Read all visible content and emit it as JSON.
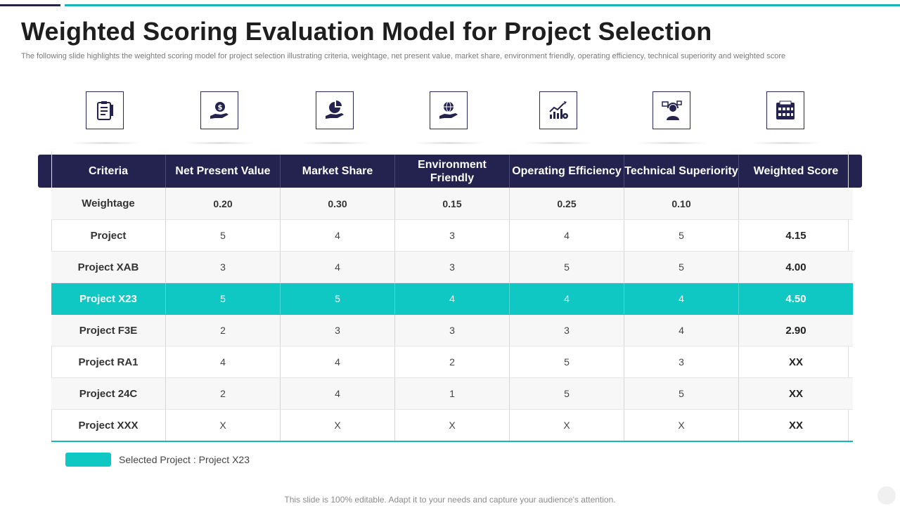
{
  "slide": {
    "title": "Weighted Scoring Evaluation Model for Project Selection",
    "subtitle": "The following slide highlights the weighted scoring model for project selection illustrating criteria, weightage, net present value, market share, environment friendly, operating efficiency, technical superiority and weighted score",
    "footer": "This slide is 100% editable. Adapt it to your needs and capture your audience's attention."
  },
  "icons": [
    "clipboard-checklist-icon",
    "money-hand-icon",
    "pie-chart-hand-icon",
    "globe-hand-icon",
    "growth-chart-gear-icon",
    "support-headset-person-icon",
    "score-calendar-icon"
  ],
  "table": {
    "headers": [
      "Criteria",
      "Net Present Value",
      "Market Share",
      "Environment Friendly",
      "Operating Efficiency",
      "Technical Superiority",
      "Weighted Score"
    ],
    "rows": [
      [
        "Weightage",
        "0.20",
        "0.30",
        "0.15",
        "0.25",
        "0.10",
        ""
      ],
      [
        "Project",
        "5",
        "4",
        "3",
        "4",
        "5",
        "4.15"
      ],
      [
        "Project XAB",
        "3",
        "4",
        "3",
        "5",
        "5",
        "4.00"
      ],
      [
        "Project X23",
        "5",
        "5",
        "4",
        "4",
        "4",
        "4.50"
      ],
      [
        "Project F3E",
        "2",
        "3",
        "3",
        "3",
        "4",
        "2.90"
      ],
      [
        "Project RA1",
        "4",
        "4",
        "2",
        "5",
        "3",
        "XX"
      ],
      [
        "Project 24C",
        "2",
        "4",
        "1",
        "5",
        "5",
        "XX"
      ],
      [
        "Project XXX",
        "X",
        "X",
        "X",
        "X",
        "X",
        "XX"
      ]
    ]
  },
  "legend": {
    "label": "Selected Project : Project X23",
    "color": "#0fc7c3"
  },
  "colors": {
    "header_bg": "#24234f",
    "accent": "#0fc7c3",
    "top_teal": "#19b6b8"
  }
}
